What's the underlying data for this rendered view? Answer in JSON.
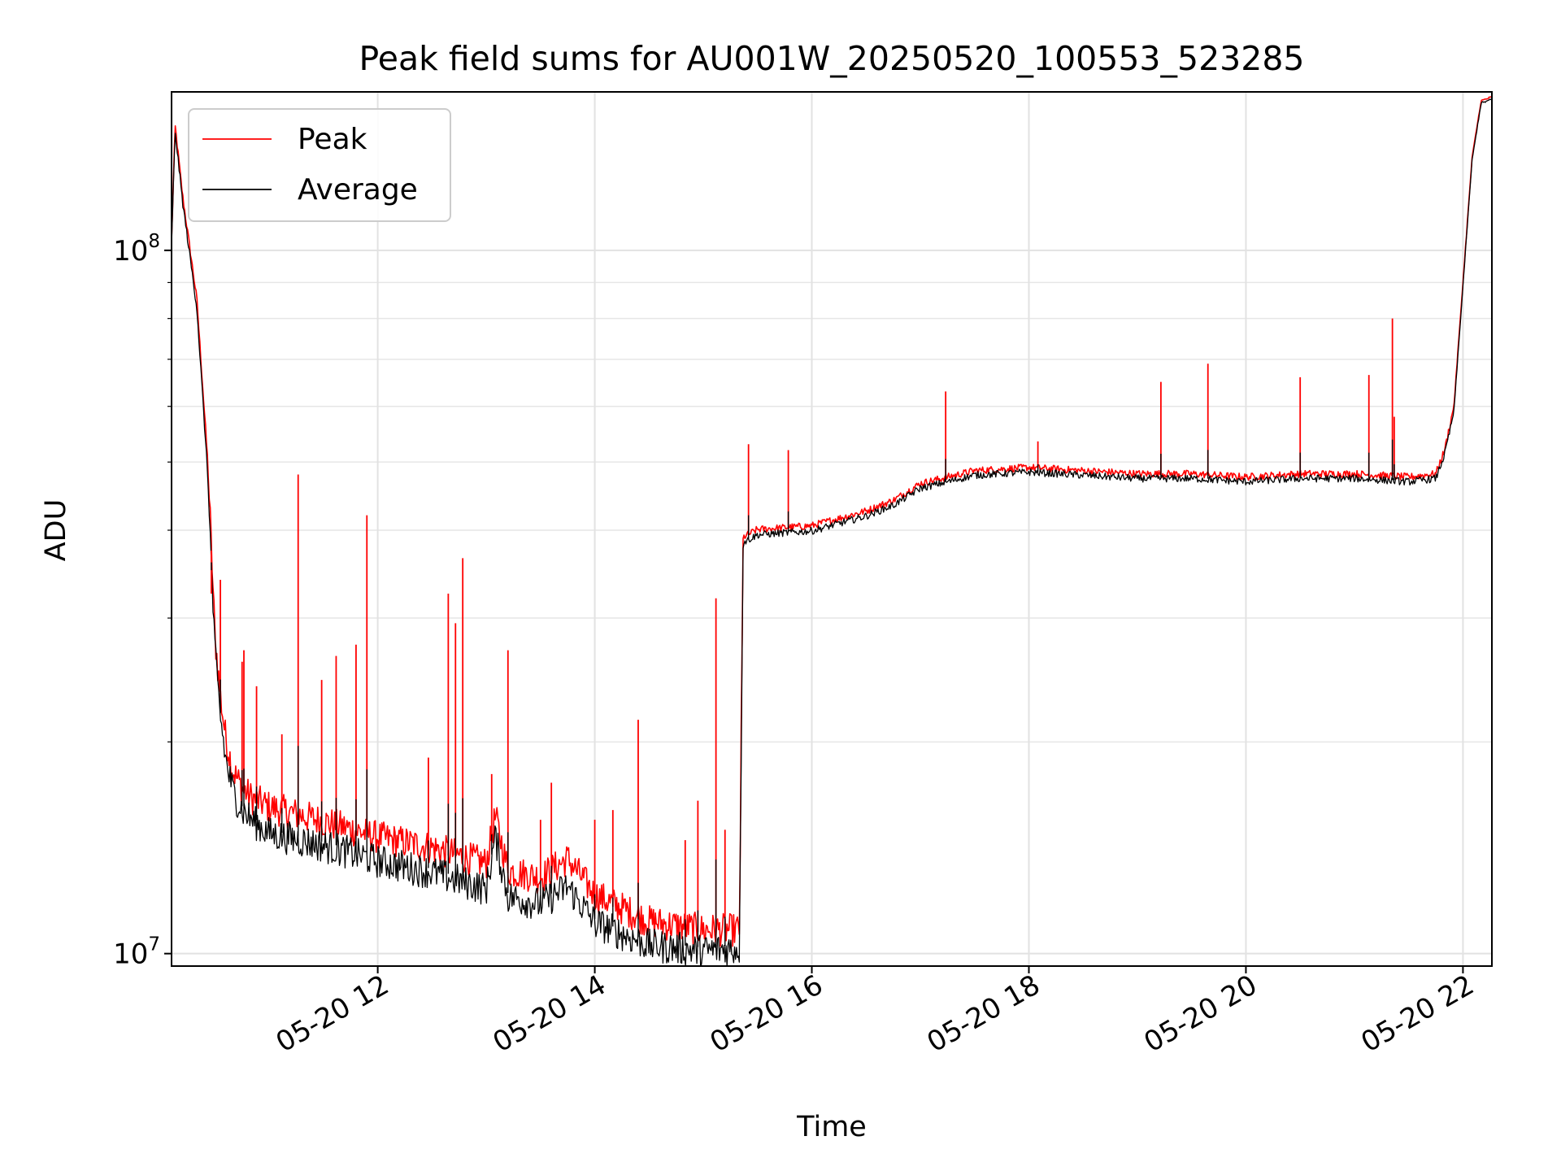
{
  "chart_data": {
    "type": "line",
    "title": "Peak field sums for AU001W_20250520_100553_523285",
    "xlabel": "Time",
    "ylabel": "ADU",
    "y_scale": "log",
    "xlim": [
      "2025-05-20 10:06",
      "2025-05-20 22:16"
    ],
    "ylim": [
      9600000,
      168000000
    ],
    "x_ticks": [
      "2025-05-20 12:00",
      "2025-05-20 14:00",
      "2025-05-20 16:00",
      "2025-05-20 18:00",
      "2025-05-20 20:00",
      "2025-05-20 22:00"
    ],
    "x_tick_labels": [
      "05-20 12",
      "05-20 14",
      "05-20 16",
      "05-20 18",
      "05-20 20",
      "05-20 22"
    ],
    "y_ticks": [
      10000000,
      100000000
    ],
    "y_tick_labels": [
      {
        "base": "10",
        "exp": "7"
      },
      {
        "base": "10",
        "exp": "8"
      }
    ],
    "grid": true,
    "legend_position": "top-left",
    "series": [
      {
        "name": "Peak",
        "color": "#ff0000",
        "x": [
          "2025-05-20 10:06",
          "2025-05-20 10:08",
          "2025-05-20 10:12",
          "2025-05-20 10:20",
          "2025-05-20 10:26",
          "2025-05-20 10:30",
          "2025-05-20 10:33",
          "2025-05-20 10:36",
          "2025-05-20 10:40",
          "2025-05-20 10:45",
          "2025-05-20 10:50",
          "2025-05-20 11:00",
          "2025-05-20 11:20",
          "2025-05-20 11:40",
          "2025-05-20 12:00",
          "2025-05-20 12:30",
          "2025-05-20 13:00",
          "2025-05-20 13:05",
          "2025-05-20 13:12",
          "2025-05-20 13:30",
          "2025-05-20 13:45",
          "2025-05-20 14:00",
          "2025-05-20 14:30",
          "2025-05-20 15:00",
          "2025-05-20 15:20",
          "2025-05-20 15:22",
          "2025-05-20 15:30",
          "2025-05-20 16:00",
          "2025-05-20 16:30",
          "2025-05-20 16:45",
          "2025-05-20 17:00",
          "2025-05-20 17:30",
          "2025-05-20 18:00",
          "2025-05-20 18:30",
          "2025-05-20 19:00",
          "2025-05-20 19:30",
          "2025-05-20 20:00",
          "2025-05-20 20:30",
          "2025-05-20 21:00",
          "2025-05-20 21:30",
          "2025-05-20 21:45",
          "2025-05-20 21:50",
          "2025-05-20 21:55",
          "2025-05-20 22:00",
          "2025-05-20 22:05",
          "2025-05-20 22:10",
          "2025-05-20 22:16"
        ],
        "values": [
          103000000,
          150000000,
          120000000,
          85000000,
          50000000,
          28000000,
          23000000,
          20000000,
          18000000,
          17000000,
          16500000,
          16000000,
          15500000,
          15000000,
          14500000,
          14000000,
          13300000,
          15500000,
          13000000,
          12700000,
          13500000,
          12000000,
          11000000,
          10700000,
          10700000,
          39000000,
          40000000,
          40500000,
          42500000,
          44000000,
          46500000,
          48500000,
          49000000,
          48500000,
          48000000,
          48000000,
          47500000,
          48000000,
          48000000,
          47500000,
          48000000,
          52000000,
          60000000,
          90000000,
          135000000,
          163000000,
          165000000
        ]
      },
      {
        "name": "Average",
        "color": "#000000",
        "x": [
          "2025-05-20 10:06",
          "2025-05-20 10:08",
          "2025-05-20 10:12",
          "2025-05-20 10:20",
          "2025-05-20 10:26",
          "2025-05-20 10:30",
          "2025-05-20 10:33",
          "2025-05-20 10:36",
          "2025-05-20 10:40",
          "2025-05-20 10:45",
          "2025-05-20 10:50",
          "2025-05-20 11:00",
          "2025-05-20 11:20",
          "2025-05-20 11:40",
          "2025-05-20 12:00",
          "2025-05-20 12:30",
          "2025-05-20 13:00",
          "2025-05-20 13:05",
          "2025-05-20 13:12",
          "2025-05-20 13:30",
          "2025-05-20 13:45",
          "2025-05-20 14:00",
          "2025-05-20 14:30",
          "2025-05-20 15:00",
          "2025-05-20 15:20",
          "2025-05-20 15:22",
          "2025-05-20 15:30",
          "2025-05-20 16:00",
          "2025-05-20 16:30",
          "2025-05-20 16:45",
          "2025-05-20 17:00",
          "2025-05-20 17:30",
          "2025-05-20 18:00",
          "2025-05-20 18:30",
          "2025-05-20 19:00",
          "2025-05-20 19:30",
          "2025-05-20 20:00",
          "2025-05-20 20:30",
          "2025-05-20 21:00",
          "2025-05-20 21:30",
          "2025-05-20 21:45",
          "2025-05-20 21:50",
          "2025-05-20 21:55",
          "2025-05-20 22:00",
          "2025-05-20 22:05",
          "2025-05-20 22:10",
          "2025-05-20 22:16"
        ],
        "values": [
          102000000,
          148000000,
          118000000,
          83000000,
          48000000,
          27000000,
          22000000,
          19000000,
          17200000,
          16200000,
          15700000,
          15000000,
          14600000,
          14200000,
          13700000,
          13200000,
          12500000,
          14800000,
          12200000,
          11900000,
          12600000,
          11200000,
          10400000,
          10200000,
          10300000,
          38500000,
          39500000,
          40000000,
          42000000,
          43500000,
          46000000,
          48000000,
          48500000,
          48000000,
          47500000,
          47500000,
          47000000,
          47500000,
          47500000,
          47000000,
          47500000,
          51500000,
          59000000,
          89000000,
          134000000,
          162000000,
          164000000
        ]
      }
    ],
    "spikes": [
      {
        "time": "2025-05-20 10:28",
        "peak": 32500000
      },
      {
        "time": "2025-05-20 10:33",
        "peak": 34000000
      },
      {
        "time": "2025-05-20 10:45",
        "peak": 26000000
      },
      {
        "time": "2025-05-20 10:46",
        "peak": 27000000
      },
      {
        "time": "2025-05-20 10:53",
        "peak": 24000000
      },
      {
        "time": "2025-05-20 11:07",
        "peak": 20500000
      },
      {
        "time": "2025-05-20 11:16",
        "peak": 48000000
      },
      {
        "time": "2025-05-20 11:29",
        "peak": 24500000
      },
      {
        "time": "2025-05-20 11:37",
        "peak": 26500000
      },
      {
        "time": "2025-05-20 11:48",
        "peak": 27500000
      },
      {
        "time": "2025-05-20 11:54",
        "peak": 42000000
      },
      {
        "time": "2025-05-20 12:28",
        "peak": 19000000
      },
      {
        "time": "2025-05-20 12:39",
        "peak": 32500000
      },
      {
        "time": "2025-05-20 12:43",
        "peak": 29500000
      },
      {
        "time": "2025-05-20 12:47",
        "peak": 36500000
      },
      {
        "time": "2025-05-20 13:03",
        "peak": 18000000
      },
      {
        "time": "2025-05-20 13:12",
        "peak": 27000000
      },
      {
        "time": "2025-05-20 13:30",
        "peak": 15500000
      },
      {
        "time": "2025-05-20 13:36",
        "peak": 17500000
      },
      {
        "time": "2025-05-20 14:00",
        "peak": 15500000
      },
      {
        "time": "2025-05-20 14:10",
        "peak": 16000000
      },
      {
        "time": "2025-05-20 14:24",
        "peak": 21500000
      },
      {
        "time": "2025-05-20 14:50",
        "peak": 14500000
      },
      {
        "time": "2025-05-20 14:57",
        "peak": 16500000
      },
      {
        "time": "2025-05-20 15:07",
        "peak": 32000000
      },
      {
        "time": "2025-05-20 15:12",
        "peak": 15000000
      },
      {
        "time": "2025-05-20 15:25",
        "peak": 53000000
      },
      {
        "time": "2025-05-20 15:47",
        "peak": 52000000
      },
      {
        "time": "2025-05-20 17:14",
        "peak": 63000000
      },
      {
        "time": "2025-05-20 18:05",
        "peak": 53500000
      },
      {
        "time": "2025-05-20 19:13",
        "peak": 65000000
      },
      {
        "time": "2025-05-20 19:39",
        "peak": 69000000
      },
      {
        "time": "2025-05-20 20:30",
        "peak": 66000000
      },
      {
        "time": "2025-05-20 21:08",
        "peak": 66500000
      },
      {
        "time": "2025-05-20 21:21",
        "peak": 80000000
      },
      {
        "time": "2025-05-20 21:22",
        "peak": 58000000
      }
    ]
  }
}
